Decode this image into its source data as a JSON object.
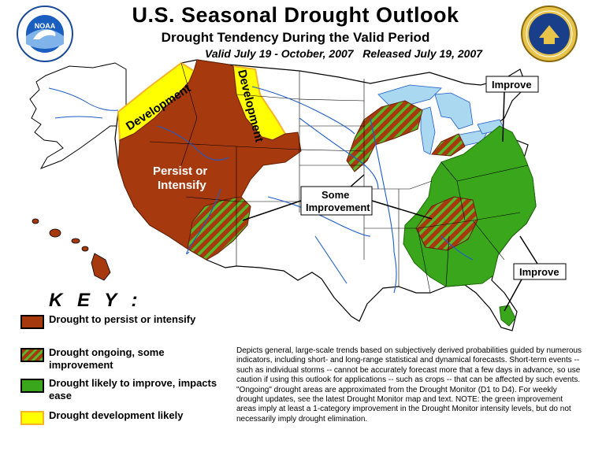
{
  "header": {
    "title": "U.S. Seasonal Drought Outlook",
    "subtitle": "Drought Tendency During the Valid Period",
    "valid_line": "Valid July 19 - October, 2007   Released July 19, 2007"
  },
  "logos": {
    "noaa": {
      "text": "NOAA",
      "icon": "noaa-seal-icon"
    },
    "commerce": {
      "icon": "department-of-commerce-seal-icon"
    }
  },
  "map_labels": {
    "development_west": "Development",
    "development_montana": "Development",
    "persist_line1": "Persist or",
    "persist_line2": "Intensify",
    "improve_ne": "Improve",
    "some_improvement_line1": "Some",
    "some_improvement_line2": "Improvement",
    "improve_se": "Improve"
  },
  "key": {
    "title": "K E Y :",
    "items": [
      {
        "label": "Drought to persist or intensify",
        "color": "#a63a0e",
        "pattern": "solid"
      },
      {
        "label": "Drought ongoing, some improvement",
        "color": "#a63a0e",
        "stripe_color": "#57b82e",
        "pattern": "hatched"
      },
      {
        "label": "Drought likely to improve, impacts ease",
        "color": "#3aa61b",
        "pattern": "solid"
      },
      {
        "label": "Drought development likely",
        "color": "#ffff00",
        "border": "#f6b428",
        "pattern": "solid"
      }
    ]
  },
  "description": "Depicts general, large-scale trends based on subjectively derived probabilities guided by numerous indicators, including short- and long-range statistical and dynamical forecasts. Short-term events -- such as individual storms -- cannot be accurately forecast more that a few days in advance, so use caution if using this outlook for applications -- such as crops -- that can be affected by such events. \"Ongoing\" drought areas are approximated from the Drought Monitor (D1 to D4). For weekly drought updates, see the latest Drought Monitor map and text. NOTE: the green improvement areas imply at least a 1-category improvement in the Drought Monitor intensity levels, but do not necessarily imply drought elimination.",
  "colors": {
    "persist": "#a63a0e",
    "improve": "#3aa61b",
    "development": "#ffff00",
    "water": "#a9d8f0",
    "rivers": "#1e5ccc"
  }
}
